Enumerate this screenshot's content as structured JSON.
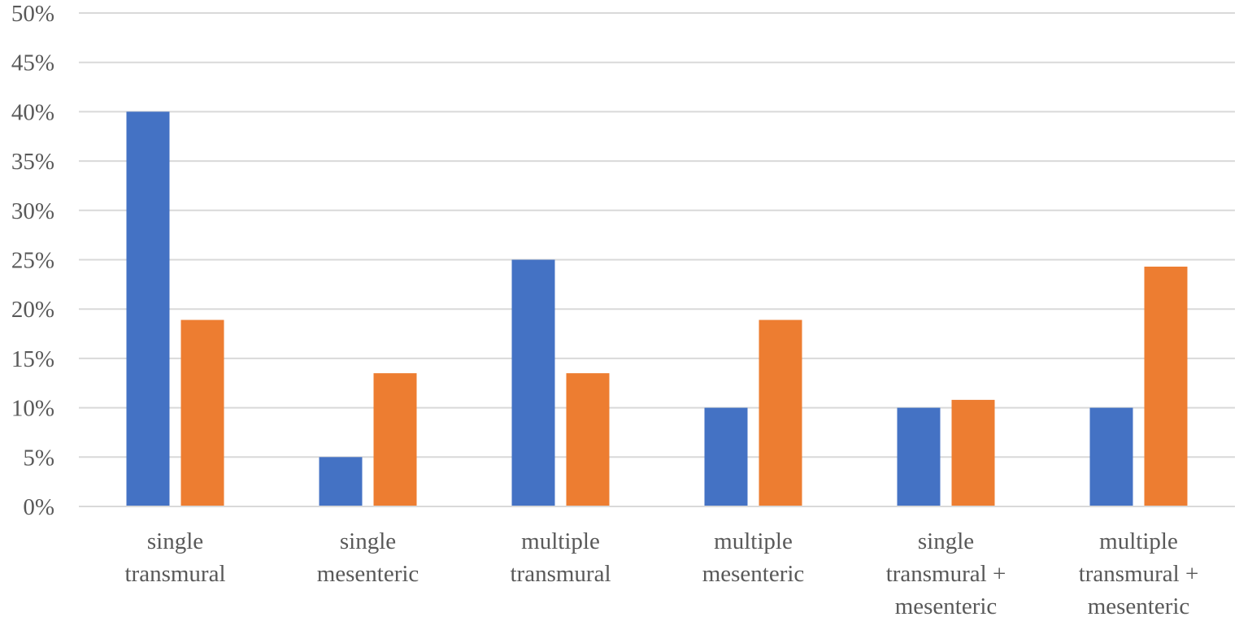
{
  "chart_data": {
    "type": "bar",
    "title": "",
    "xlabel": "",
    "ylabel": "",
    "ylim": [
      0,
      50
    ],
    "y_ticks": [
      0,
      5,
      10,
      15,
      20,
      25,
      30,
      35,
      40,
      45,
      50
    ],
    "y_tick_labels": [
      "0%",
      "5%",
      "10%",
      "15%",
      "20%",
      "25%",
      "30%",
      "35%",
      "40%",
      "45%",
      "50%"
    ],
    "grid": true,
    "legend": "none",
    "categories": [
      [
        "single",
        "transmural"
      ],
      [
        "single",
        "mesenteric"
      ],
      [
        "multiple",
        "transmural"
      ],
      [
        "multiple",
        "mesenteric"
      ],
      [
        "single",
        "transmural +",
        "mesenteric"
      ],
      [
        "multiple",
        "transmural +",
        "mesenteric"
      ]
    ],
    "series": [
      {
        "color": "#4472c4",
        "values": [
          40,
          5,
          25,
          10,
          10,
          10
        ]
      },
      {
        "color": "#ed7d31",
        "values": [
          18.9,
          13.5,
          13.5,
          18.9,
          10.8,
          24.3
        ]
      }
    ]
  }
}
